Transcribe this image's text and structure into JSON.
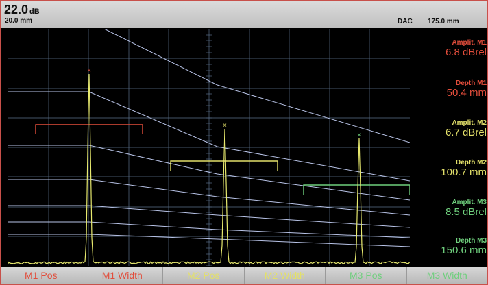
{
  "header": {
    "gain_value": "22.0",
    "gain_unit": "dB",
    "range": "20.0 mm",
    "dac_label": "DAC",
    "dac_value": "175.0 mm"
  },
  "readouts": [
    {
      "label": "Amplit. M1",
      "value": "6.8  dBrel",
      "color": "#e24d3b"
    },
    {
      "label": "Depth M1",
      "value": "50.4  mm",
      "color": "#e24d3b"
    },
    {
      "label": "Amplit. M2",
      "value": "6.7  dBrel",
      "color": "#e3e06a"
    },
    {
      "label": "Depth M2",
      "value": "100.7  mm",
      "color": "#e3e06a"
    },
    {
      "label": "Amplit. M3",
      "value": "8.5  dBrel",
      "color": "#6fcf7d"
    },
    {
      "label": "Depth M3",
      "value": "150.6  mm",
      "color": "#6fcf7d"
    }
  ],
  "softkeys": [
    {
      "label": "M1 Pos",
      "color": "#e24d3b"
    },
    {
      "label": "M1 Width",
      "color": "#e24d3b"
    },
    {
      "label": "M2 Pos",
      "color": "#e3e06a"
    },
    {
      "label": "M2 Width",
      "color": "#e3e06a"
    },
    {
      "label": "M3 Pos",
      "color": "#6fcf7d"
    },
    {
      "label": "M3 Width",
      "color": "#6fcf7d"
    }
  ],
  "colors": {
    "m1": "#e24d3b",
    "m2": "#e3e06a",
    "m3": "#6fcf7d",
    "grid": "#5a6f8a",
    "dac": "#b9c4e8",
    "ascan": "#e7e96e"
  }
}
